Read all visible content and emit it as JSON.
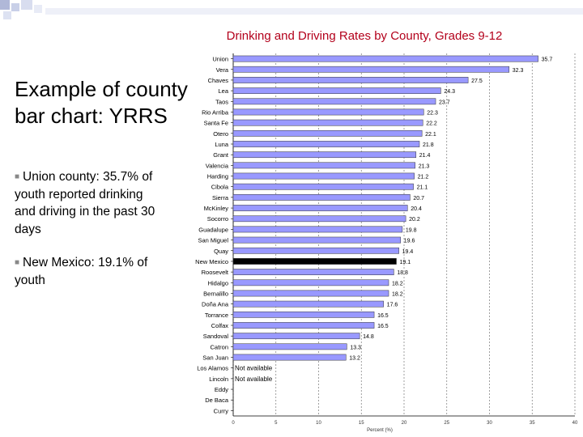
{
  "slide": {
    "heading": "Example of county bar chart: YRRS",
    "bullets": [
      "Union county: 35.7% of youth reported drinking and driving in the past 30 days",
      "New Mexico: 19.1% of youth"
    ]
  },
  "colors": {
    "title": "#b3001b",
    "bar": "#9999ff",
    "bar_highlight": "#000000",
    "bar_outline": "#333333"
  },
  "chart_data": {
    "type": "bar",
    "orientation": "horizontal",
    "title": "Drinking and Driving Rates by County, Grades 9-12",
    "xlabel": "Percent (%)",
    "xlim": [
      0,
      40
    ],
    "xticks": [
      "0",
      "5",
      "10",
      "15",
      "20",
      "25",
      "30",
      "35",
      "40"
    ],
    "grid": true,
    "highlight": "New Mexico",
    "categories": [
      "Union",
      "Vera",
      "Chaves",
      "Lea",
      "Taos",
      "Rio Arriba",
      "Santa Fe",
      "Otero",
      "Luna",
      "Grant",
      "Valencia",
      "Harding",
      "Cibola",
      "Sierra",
      "McKinley",
      "Socorro",
      "Guadalupe",
      "San Miguel",
      "Quay",
      "New Mexico",
      "Roosevelt",
      "Hidalgo",
      "Bernalillo",
      "Doña Ana",
      "Torrance",
      "Colfax",
      "Sandoval",
      "Catron",
      "San Juan",
      "Los Alamos",
      "Lincoln",
      "Eddy",
      "De Baca",
      "Curry"
    ],
    "values": [
      35.7,
      32.3,
      27.5,
      24.3,
      23.7,
      22.3,
      22.2,
      22.1,
      21.8,
      21.4,
      21.3,
      21.2,
      21.1,
      20.7,
      20.4,
      20.2,
      19.8,
      19.6,
      19.4,
      19.1,
      18.8,
      18.2,
      18.2,
      17.6,
      16.5,
      16.5,
      14.8,
      13.3,
      13.2,
      null,
      null,
      null,
      null,
      null
    ],
    "value_labels": [
      "35.7",
      "32.3",
      "27.5",
      "24.3",
      "23.7",
      "22.3",
      "22.2",
      "22.1",
      "21.8",
      "21.4",
      "21.3",
      "21.2",
      "21.1",
      "20.7",
      "20.4",
      "20.2",
      "19.8",
      "19.6",
      "19.4",
      "19.1",
      "18.8",
      "18.2",
      "18.2",
      "17.6",
      "16.5",
      "16.5",
      "14.8",
      "13.3",
      "13.2",
      "Not available",
      "Not available",
      "",
      "",
      ""
    ]
  }
}
